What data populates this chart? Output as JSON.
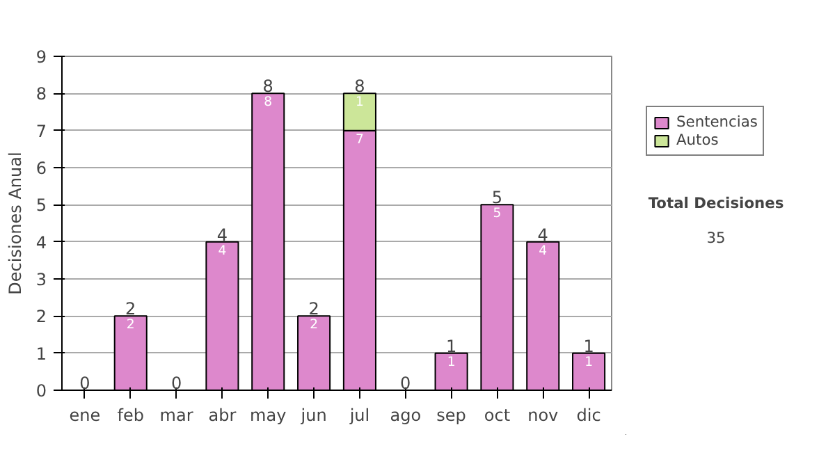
{
  "chart_data": {
    "type": "bar",
    "stacked": true,
    "ylabel": "Decisiones Anual",
    "categories": [
      "ene",
      "feb",
      "mar",
      "abr",
      "may",
      "jun",
      "jul",
      "ago",
      "sep",
      "oct",
      "nov",
      "dic"
    ],
    "series": [
      {
        "name": "Sentencias",
        "color": "#dd88cc",
        "values": [
          0,
          2,
          0,
          4,
          8,
          2,
          7,
          0,
          1,
          5,
          4,
          1
        ],
        "value_labels": [
          null,
          "2",
          null,
          "4",
          "8",
          "2",
          "7",
          null,
          "1",
          "5",
          "4",
          "1"
        ]
      },
      {
        "name": "Autos",
        "color": "#cce699",
        "values": [
          0,
          0,
          0,
          0,
          0,
          0,
          1,
          0,
          0,
          0,
          0,
          0
        ],
        "value_labels": [
          null,
          null,
          null,
          null,
          null,
          null,
          "1",
          null,
          null,
          null,
          null,
          null
        ]
      }
    ],
    "totals": [
      "0",
      "2",
      "0",
      "4",
      "8",
      "2",
      "8",
      "0",
      "1",
      "5",
      "4",
      "1"
    ],
    "ylim": [
      0,
      9
    ],
    "yticks": [
      0,
      1,
      2,
      3,
      4,
      5,
      6,
      7,
      8,
      9
    ],
    "grid": "y",
    "legend": "right",
    "annotations": [
      "Total Decisiones",
      "35"
    ]
  }
}
